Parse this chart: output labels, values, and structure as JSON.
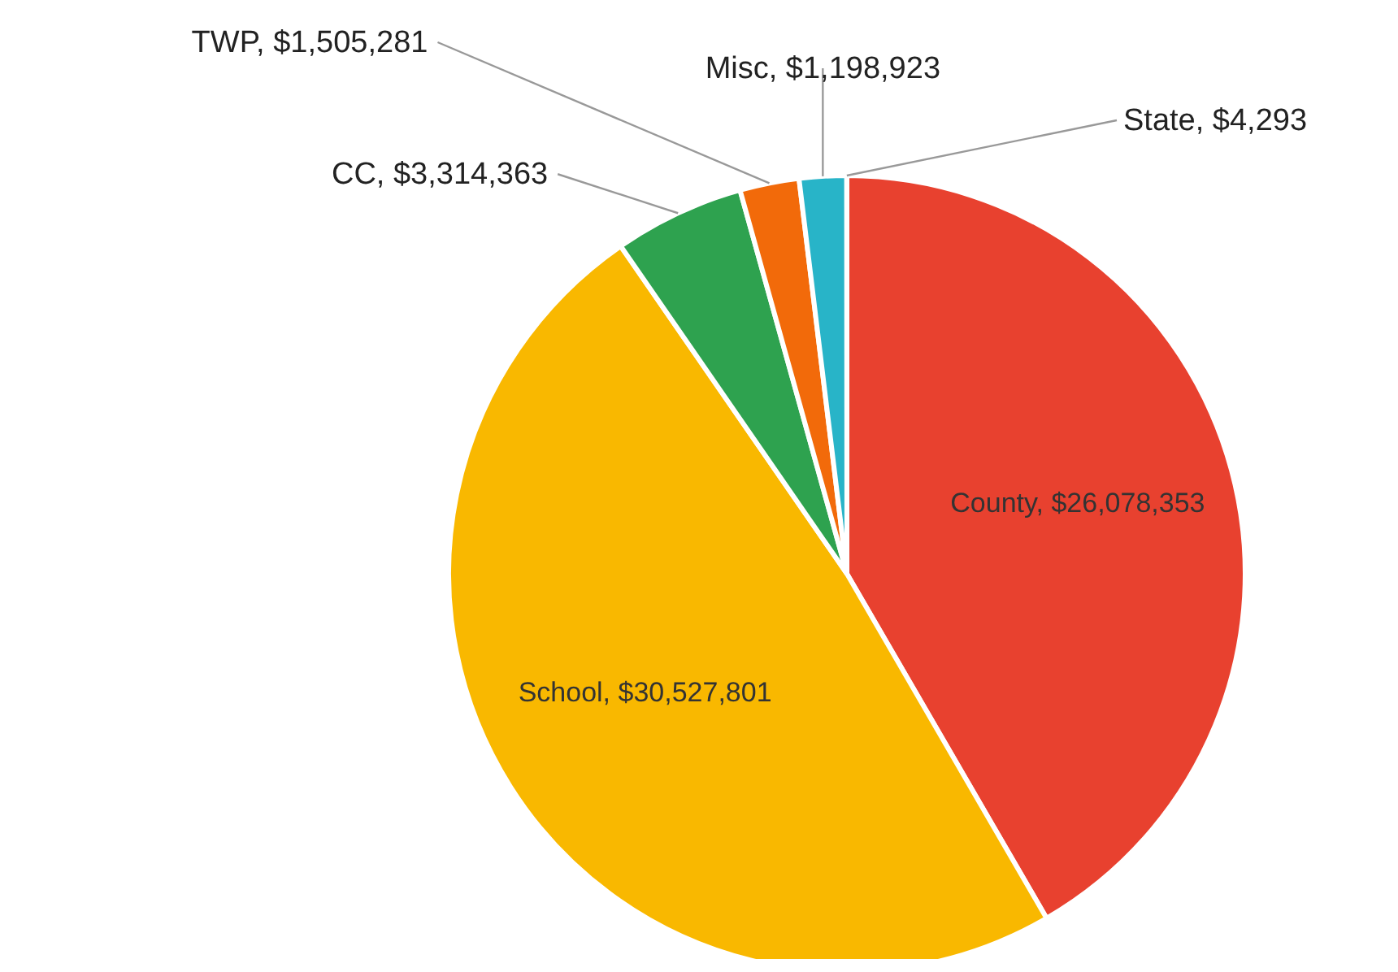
{
  "chart_data": {
    "type": "pie",
    "categories": [
      "County",
      "School",
      "CC",
      "TWP",
      "Misc",
      "State"
    ],
    "values": [
      26078353,
      30527801,
      3314363,
      1505281,
      1198923,
      4293
    ],
    "value_labels": [
      "$26,078,353",
      "$30,527,801",
      "$3,314,363",
      "$1,505,281",
      "$1,198,923",
      "$4,293"
    ],
    "colors": [
      "#e8412f",
      "#f9b800",
      "#2ea24f",
      "#f26a0a",
      "#28b4c8",
      "#8e5ba6"
    ],
    "legend": false
  }
}
